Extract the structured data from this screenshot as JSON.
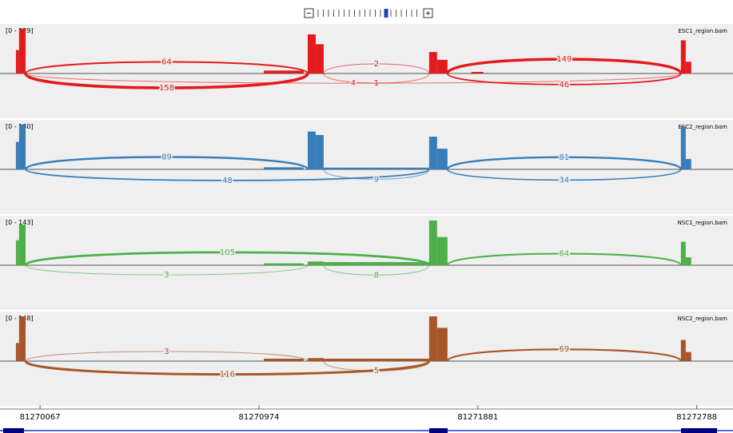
{
  "view": {
    "start": 81269901,
    "end": 81272938
  },
  "axis": {
    "ticks": [
      81270067,
      81270974,
      81271881,
      81272788
    ]
  },
  "tracks": [
    {
      "name": "ESC1_region.bam",
      "range": "[0 - 229]",
      "max": 229,
      "color": "#e41a1c",
      "coverage": [
        [
          81269967,
          81269980,
          120
        ],
        [
          81269980,
          81270007,
          229
        ],
        [
          81270994,
          81271159,
          15
        ],
        [
          81271176,
          81271209,
          200
        ],
        [
          81271209,
          81271242,
          150
        ],
        [
          81271679,
          81271712,
          110
        ],
        [
          81271712,
          81271755,
          70
        ],
        [
          81271854,
          81271904,
          8
        ],
        [
          81272722,
          81272742,
          170
        ],
        [
          81272742,
          81272765,
          60
        ]
      ],
      "junctions": [
        {
          "start": 81270007,
          "end": 81271176,
          "count": 64,
          "above": true
        },
        {
          "start": 81271242,
          "end": 81271679,
          "count": 2,
          "above": true
        },
        {
          "start": 81271755,
          "end": 81272722,
          "count": 149,
          "above": true
        },
        {
          "start": 81270007,
          "end": 81271176,
          "count": 158,
          "above": false
        },
        {
          "start": 81271242,
          "end": 81271679,
          "count": 1,
          "above": false
        },
        {
          "start": 81270007,
          "end": 81272722,
          "count": 4,
          "above": false
        },
        {
          "start": 81271755,
          "end": 81272722,
          "count": 46,
          "above": false
        }
      ]
    },
    {
      "name": "ESC2_region.bam",
      "range": "[0 - 130]",
      "max": 130,
      "color": "#377eb8",
      "coverage": [
        [
          81269967,
          81269980,
          80
        ],
        [
          81269980,
          81270007,
          130
        ],
        [
          81270994,
          81271159,
          6
        ],
        [
          81271176,
          81271209,
          110
        ],
        [
          81271209,
          81271242,
          100
        ],
        [
          81271242,
          81271679,
          5
        ],
        [
          81271679,
          81271712,
          95
        ],
        [
          81271712,
          81271755,
          60
        ],
        [
          81272722,
          81272742,
          125
        ],
        [
          81272742,
          81272765,
          30
        ]
      ],
      "junctions": [
        {
          "start": 81270007,
          "end": 81271176,
          "count": 89,
          "above": true
        },
        {
          "start": 81271755,
          "end": 81272722,
          "count": 81,
          "above": true
        },
        {
          "start": 81270007,
          "end": 81271679,
          "count": 48,
          "above": false
        },
        {
          "start": 81271242,
          "end": 81271679,
          "count": 9,
          "above": false
        },
        {
          "start": 81271755,
          "end": 81272722,
          "count": 34,
          "above": false
        }
      ]
    },
    {
      "name": "NSC1_region.bam",
      "range": "[0 - 143]",
      "max": 143,
      "color": "#4daf4a",
      "coverage": [
        [
          81269967,
          81269980,
          80
        ],
        [
          81269980,
          81270007,
          130
        ],
        [
          81270994,
          81271159,
          6
        ],
        [
          81271176,
          81271242,
          12
        ],
        [
          81271242,
          81271679,
          10
        ],
        [
          81271679,
          81271712,
          143
        ],
        [
          81271712,
          81271755,
          90
        ],
        [
          81272722,
          81272742,
          75
        ],
        [
          81272742,
          81272765,
          25
        ]
      ],
      "junctions": [
        {
          "start": 81270007,
          "end": 81271679,
          "count": 105,
          "above": true
        },
        {
          "start": 81271755,
          "end": 81272722,
          "count": 64,
          "above": true
        },
        {
          "start": 81270007,
          "end": 81271176,
          "count": 3,
          "above": false
        },
        {
          "start": 81271242,
          "end": 81271679,
          "count": 8,
          "above": false
        }
      ]
    },
    {
      "name": "NSC2_region.bam",
      "range": "[0 - 148]",
      "max": 148,
      "color": "#a65628",
      "coverage": [
        [
          81269967,
          81269980,
          60
        ],
        [
          81269980,
          81270007,
          148
        ],
        [
          81270994,
          81271159,
          8
        ],
        [
          81271176,
          81271242,
          10
        ],
        [
          81271242,
          81271679,
          8
        ],
        [
          81271679,
          81271712,
          148
        ],
        [
          81271712,
          81271755,
          110
        ],
        [
          81272722,
          81272742,
          70
        ],
        [
          81272742,
          81272765,
          30
        ]
      ],
      "junctions": [
        {
          "start": 81270007,
          "end": 81271176,
          "count": 3,
          "above": true
        },
        {
          "start": 81271755,
          "end": 81272722,
          "count": 69,
          "above": true
        },
        {
          "start": 81270007,
          "end": 81271679,
          "count": 116,
          "above": false
        },
        {
          "start": 81271242,
          "end": 81271679,
          "count": 5,
          "above": false
        }
      ]
    }
  ]
}
